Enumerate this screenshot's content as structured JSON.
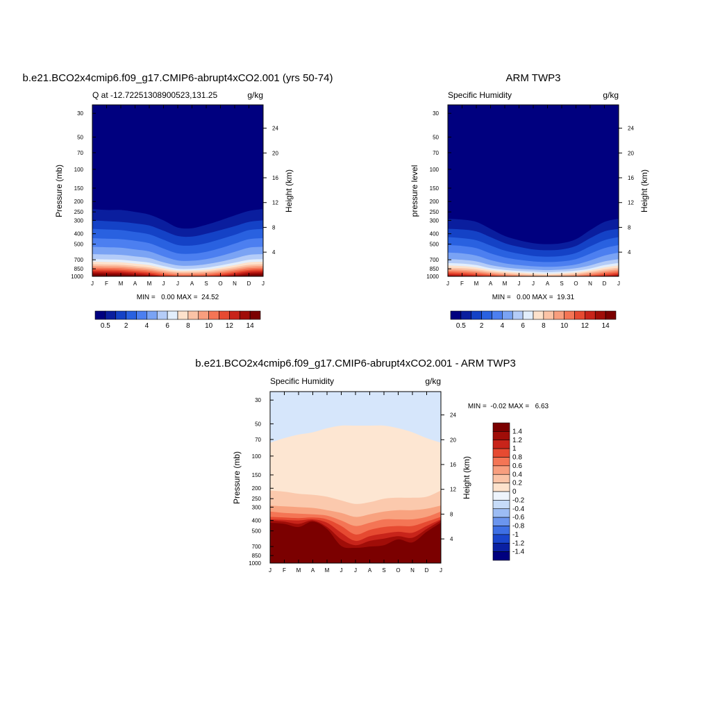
{
  "figure": {
    "panels": [
      {
        "id": "model",
        "title": "b.e21.BCO2x4cmip6.f09_g17.CMIP6-abrupt4xCO2.001 (yrs 50-74)",
        "left_label": "Q at -12.72251308900523,131.25",
        "right_label": "g/kg",
        "ylabel": "Pressure (mb)",
        "y2label": "Height (km)",
        "stats": "MIN =   0.00 MAX =  24.52"
      },
      {
        "id": "obs",
        "title": "ARM TWP3",
        "left_label": "Specific Humidity",
        "right_label": "g/kg",
        "ylabel": "pressure level",
        "y2label": "Height (km)",
        "stats": "MIN =   0.00 MAX =  19.31"
      },
      {
        "id": "diff",
        "title": "b.e21.BCO2x4cmip6.f09_g17.CMIP6-abrupt4xCO2.001 - ARM TWP3",
        "left_label": "Specific Humidity",
        "right_label": "g/kg",
        "ylabel": "Pressure (mb)",
        "y2label": "Height (km)",
        "stats": "MIN =  -0.02 MAX =   6.63"
      }
    ]
  },
  "chart_data": [
    {
      "type": "heatmap",
      "panel": "model",
      "title": "b.e21.BCO2x4cmip6.f09_g17.CMIP6-abrupt4xCO2.001 (yrs 50-74)",
      "xlabel": "",
      "ylabel": "Pressure (mb)",
      "y2label": "Height (km)",
      "units": "g/kg",
      "x_categories": [
        "J",
        "F",
        "M",
        "A",
        "M",
        "J",
        "J",
        "A",
        "S",
        "O",
        "N",
        "D",
        "J"
      ],
      "pressure_ticks": [
        30,
        50,
        70,
        100,
        150,
        200,
        250,
        300,
        400,
        500,
        700,
        850,
        1000
      ],
      "height_ticks": [
        4,
        8,
        12,
        16,
        20,
        24
      ],
      "ylim": [
        1000,
        25
      ],
      "y_scale": "log",
      "colorbar": {
        "orientation": "horizontal",
        "labels": [
          "0.5",
          "2",
          "4",
          "6",
          "8",
          "10",
          "12",
          "14"
        ],
        "colors": [
          "#00007f",
          "#0a1e9e",
          "#1442c6",
          "#2961e0",
          "#4c7ff0",
          "#7aa3f4",
          "#b4ccf8",
          "#e2eefc",
          "#fde2cc",
          "#fbc3a6",
          "#f89e7e",
          "#f47555",
          "#e64a31",
          "#c8241a",
          "#a00d08",
          "#7b0000"
        ]
      },
      "stats": {
        "min": 0.0,
        "max": 24.52
      },
      "approx_contours": {
        "description": "pressure (mb) at which each level threshold is crossed, per month Jan..Jan",
        "thresholds": [
          0.5,
          1,
          2,
          3,
          4,
          5,
          6,
          7,
          8,
          9,
          10,
          11,
          12,
          13,
          14,
          15
        ],
        "pressure_by_month": [
          [
            235,
            300,
            360,
            440,
            530,
            620,
            690,
            730,
            770,
            800,
            830,
            860,
            890,
            920,
            950,
            990
          ],
          [
            240,
            305,
            365,
            445,
            535,
            625,
            695,
            735,
            775,
            805,
            835,
            865,
            895,
            925,
            955,
            990
          ],
          [
            240,
            310,
            370,
            450,
            540,
            630,
            700,
            740,
            780,
            810,
            840,
            870,
            900,
            930,
            960,
            995
          ],
          [
            250,
            320,
            385,
            465,
            560,
            650,
            720,
            760,
            800,
            830,
            860,
            890,
            920,
            950,
            980,
            1000
          ],
          [
            265,
            335,
            405,
            490,
            585,
            675,
            745,
            785,
            825,
            855,
            885,
            915,
            945,
            975,
            1000,
            1000
          ],
          [
            300,
            375,
            455,
            550,
            650,
            740,
            800,
            840,
            870,
            900,
            930,
            960,
            990,
            1000,
            1000,
            1000
          ],
          [
            350,
            420,
            510,
            610,
            710,
            790,
            850,
            880,
            905,
            930,
            960,
            985,
            1000,
            1000,
            1000,
            1000
          ],
          [
            355,
            425,
            515,
            615,
            715,
            795,
            850,
            880,
            905,
            930,
            960,
            985,
            1000,
            1000,
            1000,
            1000
          ],
          [
            330,
            400,
            490,
            590,
            690,
            770,
            830,
            865,
            895,
            920,
            950,
            980,
            1000,
            1000,
            1000,
            1000
          ],
          [
            300,
            370,
            450,
            545,
            645,
            730,
            790,
            830,
            860,
            890,
            920,
            950,
            980,
            1000,
            1000,
            1000
          ],
          [
            270,
            340,
            410,
            495,
            590,
            680,
            745,
            785,
            820,
            850,
            880,
            910,
            940,
            970,
            1000,
            1000
          ],
          [
            245,
            310,
            370,
            450,
            540,
            630,
            700,
            740,
            780,
            810,
            840,
            870,
            900,
            930,
            960,
            995
          ],
          [
            235,
            300,
            360,
            440,
            530,
            620,
            690,
            730,
            770,
            800,
            830,
            860,
            890,
            920,
            950,
            990
          ]
        ]
      }
    },
    {
      "type": "heatmap",
      "panel": "obs",
      "title": "ARM TWP3",
      "xlabel": "",
      "ylabel": "pressure level",
      "y2label": "Height (km)",
      "units": "g/kg",
      "x_categories": [
        "J",
        "F",
        "M",
        "A",
        "M",
        "J",
        "J",
        "A",
        "S",
        "O",
        "N",
        "D",
        "J"
      ],
      "pressure_ticks": [
        30,
        50,
        70,
        100,
        150,
        200,
        250,
        300,
        400,
        500,
        700,
        850,
        1000
      ],
      "height_ticks": [
        4,
        8,
        12,
        16,
        20,
        24
      ],
      "ylim": [
        1000,
        25
      ],
      "y_scale": "log",
      "colorbar": {
        "orientation": "horizontal",
        "labels": [
          "0.5",
          "2",
          "4",
          "6",
          "8",
          "10",
          "12",
          "14"
        ],
        "colors": [
          "#00007f",
          "#0a1e9e",
          "#1442c6",
          "#2961e0",
          "#4c7ff0",
          "#7aa3f4",
          "#b4ccf8",
          "#e2eefc",
          "#fde2cc",
          "#fbc3a6",
          "#f89e7e",
          "#f47555",
          "#e64a31",
          "#c8241a",
          "#a00d08",
          "#7b0000"
        ]
      },
      "stats": {
        "min": 0.0,
        "max": 19.31
      },
      "approx_contours": {
        "description": "pressure (mb) at which each level threshold is crossed, per month Jan..Jan",
        "thresholds": [
          0.5,
          1,
          2,
          3,
          4,
          5,
          6,
          7,
          8,
          9,
          10,
          11,
          12,
          13,
          14,
          15
        ],
        "pressure_by_month": [
          [
            290,
            360,
            430,
            510,
            600,
            690,
            750,
            790,
            830,
            860,
            890,
            920,
            950,
            980,
            1000,
            1000
          ],
          [
            295,
            365,
            440,
            520,
            610,
            700,
            760,
            800,
            840,
            870,
            900,
            930,
            960,
            990,
            1000,
            1000
          ],
          [
            310,
            380,
            460,
            545,
            640,
            725,
            785,
            825,
            860,
            890,
            920,
            950,
            980,
            1000,
            1000,
            1000
          ],
          [
            360,
            430,
            515,
            610,
            705,
            785,
            840,
            870,
            900,
            925,
            950,
            975,
            1000,
            1000,
            1000,
            1000
          ],
          [
            420,
            490,
            575,
            665,
            755,
            825,
            870,
            900,
            925,
            950,
            975,
            1000,
            1000,
            1000,
            1000,
            1000
          ],
          [
            460,
            530,
            615,
            700,
            785,
            850,
            890,
            920,
            945,
            970,
            990,
            1000,
            1000,
            1000,
            1000,
            1000
          ],
          [
            490,
            560,
            645,
            725,
            805,
            865,
            905,
            935,
            960,
            985,
            1000,
            1000,
            1000,
            1000,
            1000,
            1000
          ],
          [
            500,
            570,
            655,
            735,
            815,
            875,
            915,
            945,
            970,
            990,
            1000,
            1000,
            1000,
            1000,
            1000,
            1000
          ],
          [
            490,
            560,
            645,
            725,
            805,
            865,
            905,
            935,
            960,
            985,
            1000,
            1000,
            1000,
            1000,
            1000,
            1000
          ],
          [
            450,
            520,
            605,
            690,
            775,
            840,
            885,
            915,
            940,
            965,
            990,
            1000,
            1000,
            1000,
            1000,
            1000
          ],
          [
            370,
            440,
            525,
            615,
            710,
            790,
            845,
            875,
            905,
            930,
            960,
            985,
            1000,
            1000,
            1000,
            1000
          ],
          [
            310,
            380,
            460,
            545,
            640,
            725,
            785,
            825,
            860,
            890,
            920,
            950,
            980,
            1000,
            1000,
            1000
          ],
          [
            290,
            360,
            430,
            510,
            600,
            690,
            750,
            790,
            830,
            860,
            890,
            920,
            950,
            980,
            1000,
            1000
          ]
        ]
      }
    },
    {
      "type": "heatmap",
      "panel": "diff",
      "title": "b.e21.BCO2x4cmip6.f09_g17.CMIP6-abrupt4xCO2.001 - ARM TWP3",
      "xlabel": "",
      "ylabel": "Pressure (mb)",
      "y2label": "Height (km)",
      "units": "g/kg",
      "x_categories": [
        "J",
        "F",
        "M",
        "A",
        "M",
        "J",
        "J",
        "A",
        "S",
        "O",
        "N",
        "D",
        "J"
      ],
      "pressure_ticks": [
        30,
        50,
        70,
        100,
        150,
        200,
        250,
        300,
        400,
        500,
        700,
        850,
        1000
      ],
      "height_ticks": [
        4,
        8,
        12,
        16,
        20,
        24
      ],
      "ylim": [
        1000,
        25
      ],
      "y_scale": "log",
      "colorbar": {
        "orientation": "vertical",
        "labels": [
          "1.4",
          "1.2",
          "1",
          "0.8",
          "0.6",
          "0.4",
          "0.2",
          "0",
          "-0.2",
          "-0.4",
          "-0.6",
          "-0.8",
          "-1",
          "-1.2",
          "-1.4"
        ],
        "colors_top_to_bottom": [
          "#7b0000",
          "#a00d08",
          "#c8241a",
          "#e64a31",
          "#f47555",
          "#f89e7e",
          "#fbc3a6",
          "#fde2cc",
          "#eef4fc",
          "#c6dbf8",
          "#9cbcf4",
          "#6b95ee",
          "#3e6fe4",
          "#1a45cc",
          "#0a20a2",
          "#00007f"
        ]
      },
      "stats": {
        "min": -0.02,
        "max": 6.63
      },
      "approx_contours": {
        "description": "pressure (mb) at which each positive level threshold is crossed (values above 0.0 region shown as light blue at top), per month Jan..Jan",
        "thresholds": [
          0.0,
          0.2,
          0.4,
          0.6,
          0.8,
          1.0,
          1.2,
          1.4
        ],
        "pressure_by_month": [
          [
            75,
            210,
            290,
            330,
            370,
            390,
            400,
            420
          ],
          [
            68,
            215,
            295,
            340,
            375,
            395,
            410,
            430
          ],
          [
            63,
            225,
            300,
            345,
            380,
            400,
            430,
            460
          ],
          [
            60,
            230,
            305,
            350,
            375,
            390,
            400,
            410
          ],
          [
            55,
            240,
            320,
            360,
            390,
            420,
            460,
            480
          ],
          [
            52,
            260,
            340,
            400,
            450,
            520,
            600,
            690
          ],
          [
            52,
            280,
            370,
            450,
            540,
            620,
            680,
            720
          ],
          [
            52,
            270,
            350,
            420,
            490,
            560,
            620,
            700
          ],
          [
            52,
            250,
            330,
            390,
            460,
            530,
            590,
            680
          ],
          [
            55,
            245,
            320,
            390,
            450,
            510,
            560,
            600
          ],
          [
            60,
            245,
            320,
            390,
            450,
            520,
            580,
            640
          ],
          [
            68,
            240,
            310,
            370,
            410,
            450,
            480,
            510
          ],
          [
            75,
            210,
            290,
            330,
            370,
            390,
            400,
            420
          ]
        ]
      }
    }
  ]
}
